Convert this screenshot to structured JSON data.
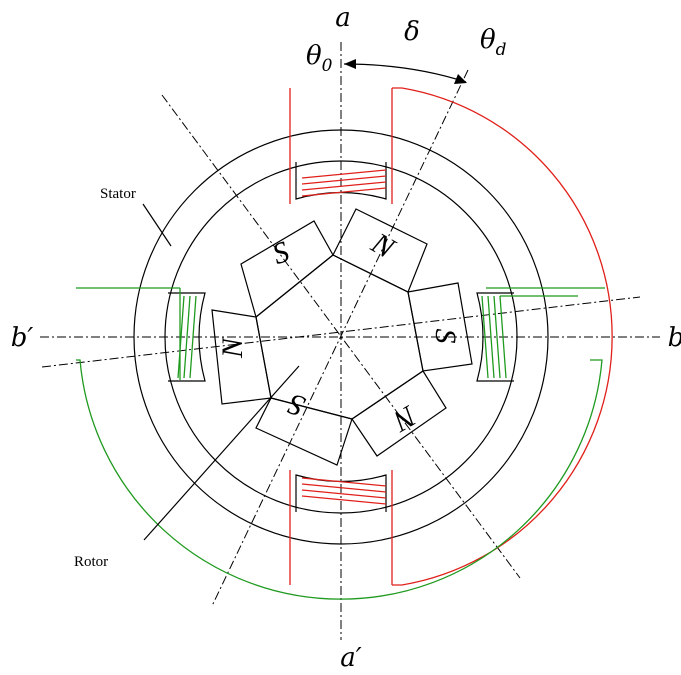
{
  "axes": {
    "a": "a",
    "a_prime": "a′",
    "b": "b",
    "b_prime": "b′",
    "theta0_base": "θ",
    "theta0_sub": "0",
    "thetad_base": "θ",
    "thetad_sub": "d",
    "delta": "δ"
  },
  "labels": {
    "stator": "Stator",
    "rotor": "Rotor"
  },
  "poles": [
    {
      "id": "top-right",
      "letter": "N"
    },
    {
      "id": "right",
      "letter": "S"
    },
    {
      "id": "bottom-right",
      "letter": "N"
    },
    {
      "id": "bottom-left",
      "letter": "S"
    },
    {
      "id": "left",
      "letter": "N"
    },
    {
      "id": "top-left",
      "letter": "S"
    }
  ],
  "colors": {
    "phase_a_winding": "#e0201a",
    "phase_b_winding": "#1f9a1f",
    "outline": "#000000"
  }
}
